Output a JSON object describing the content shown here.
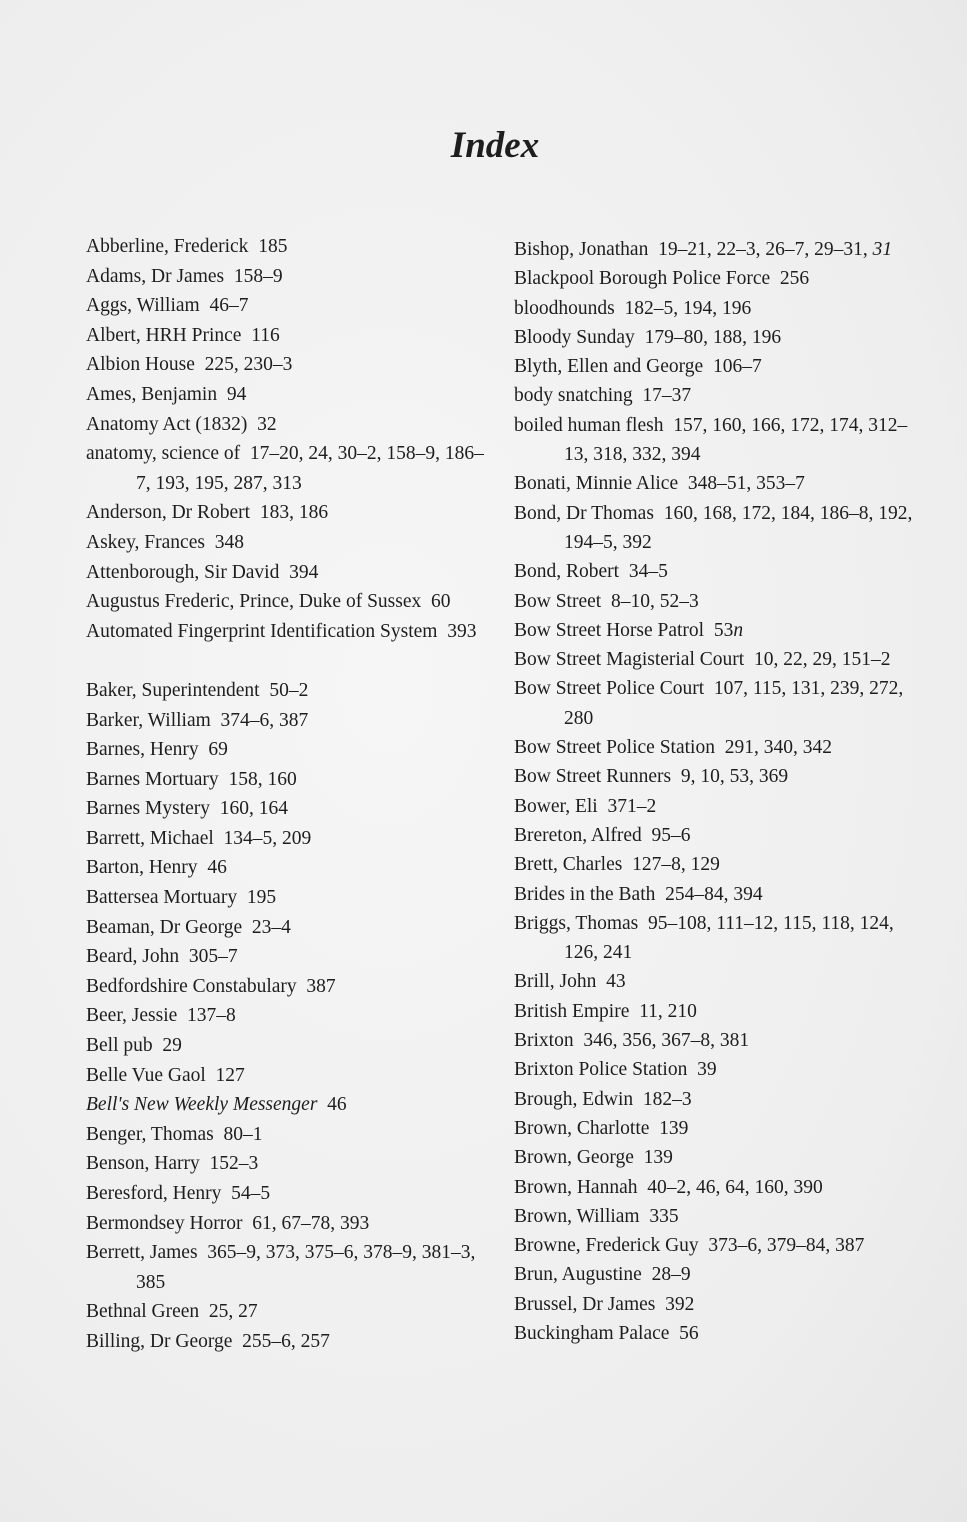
{
  "title": "Index",
  "columns": [
    [
      {
        "head": "Abberline, Frederick",
        "pages": "185"
      },
      {
        "head": "Adams, Dr James",
        "pages": "158–9"
      },
      {
        "head": "Aggs, William",
        "pages": "46–7"
      },
      {
        "head": "Albert, HRH Prince",
        "pages": "116"
      },
      {
        "head": "Albion House",
        "pages": "225, 230–3"
      },
      {
        "head": "Ames, Benjamin",
        "pages": "94"
      },
      {
        "head": "Anatomy Act (1832)",
        "pages": "32"
      },
      {
        "head": "anatomy, science of",
        "pages": "17–20, 24, 30–2, 158–9, 186–7, 193, 195, 287, 313"
      },
      {
        "head": "Anderson, Dr Robert",
        "pages": "183, 186"
      },
      {
        "head": "Askey, Frances",
        "pages": "348"
      },
      {
        "head": "Attenborough, Sir David",
        "pages": "394"
      },
      {
        "head": "Augustus Frederic, Prince, Duke of Sussex",
        "pages": "60"
      },
      {
        "head": "Automated Fingerprint Identification System",
        "pages": "393"
      },
      {
        "gap": true
      },
      {
        "head": "Baker, Superintendent",
        "pages": "50–2"
      },
      {
        "head": "Barker, William",
        "pages": "374–6, 387"
      },
      {
        "head": "Barnes, Henry",
        "pages": "69"
      },
      {
        "head": "Barnes Mortuary",
        "pages": "158, 160"
      },
      {
        "head": "Barnes Mystery",
        "pages": "160, 164"
      },
      {
        "head": "Barrett, Michael",
        "pages": "134–5, 209"
      },
      {
        "head": "Barton, Henry",
        "pages": "46"
      },
      {
        "head": "Battersea Mortuary",
        "pages": "195"
      },
      {
        "head": "Beaman, Dr George",
        "pages": "23–4"
      },
      {
        "head": "Beard, John",
        "pages": "305–7"
      },
      {
        "head": "Bedfordshire Constabulary",
        "pages": "387"
      },
      {
        "head": "Beer, Jessie",
        "pages": "137–8"
      },
      {
        "head": "Bell pub",
        "pages": "29"
      },
      {
        "head": "Belle Vue Gaol",
        "pages": "127"
      },
      {
        "head": "Bell's New Weekly Messenger",
        "head_italic": true,
        "pages": "46"
      },
      {
        "head": "Benger, Thomas",
        "pages": "80–1"
      },
      {
        "head": "Benson, Harry",
        "pages": "152–3"
      },
      {
        "head": "Beresford, Henry",
        "pages": "54–5"
      },
      {
        "head": "Bermondsey Horror",
        "pages": "61, 67–78, 393"
      },
      {
        "head": "Berrett, James",
        "pages": "365–9, 373, 375–6, 378–9, 381–3, 385"
      },
      {
        "head": "Bethnal Green",
        "pages": "25, 27"
      },
      {
        "head": "Billing, Dr George",
        "pages": "255–6, 257"
      }
    ],
    [
      {
        "head": "Bishop, Jonathan",
        "pages": "19–21, 22–3, 26–7, 29–31, ",
        "pages_italic": "31"
      },
      {
        "head": "Blackpool Borough Police Force",
        "pages": "256"
      },
      {
        "head": "bloodhounds",
        "pages": "182–5, 194, 196"
      },
      {
        "head": "Bloody Sunday",
        "pages": "179–80, 188, 196"
      },
      {
        "head": "Blyth, Ellen and George",
        "pages": "106–7"
      },
      {
        "head": "body snatching",
        "pages": "17–37"
      },
      {
        "head": "boiled human flesh",
        "pages": "157, 160, 166, 172, 174, 312–13, 318, 332, 394"
      },
      {
        "head": "Bonati, Minnie Alice",
        "pages": "348–51, 353–7"
      },
      {
        "head": "Bond, Dr Thomas",
        "pages": "160, 168, 172, 184, 186–8, 192, 194–5, 392"
      },
      {
        "head": "Bond, Robert",
        "pages": "34–5"
      },
      {
        "head": "Bow Street",
        "pages": "8–10, 52–3"
      },
      {
        "head": "Bow Street Horse Patrol",
        "pages": "53",
        "pages_italic": "n"
      },
      {
        "head": "Bow Street Magisterial Court",
        "pages": "10, 22, 29, 151–2"
      },
      {
        "head": "Bow Street Police Court",
        "pages": "107, 115, 131, 239, 272, 280"
      },
      {
        "head": "Bow Street Police Station",
        "pages": "291, 340, 342"
      },
      {
        "head": "Bow Street Runners",
        "pages": "9, 10, 53, 369"
      },
      {
        "head": "Bower, Eli",
        "pages": "371–2"
      },
      {
        "head": "Brereton, Alfred",
        "pages": "95–6"
      },
      {
        "head": "Brett, Charles",
        "pages": "127–8, 129"
      },
      {
        "head": "Brides in the Bath",
        "pages": "254–84, 394"
      },
      {
        "head": "Briggs, Thomas",
        "pages": "95–108, 111–12, 115, 118, 124, 126, 241"
      },
      {
        "head": "Brill, John",
        "pages": "43"
      },
      {
        "head": "British Empire",
        "pages": "11, 210"
      },
      {
        "head": "Brixton",
        "pages": "346, 356, 367–8, 381"
      },
      {
        "head": "Brixton Police Station",
        "pages": "39"
      },
      {
        "head": "Brough, Edwin",
        "pages": "182–3"
      },
      {
        "head": "Brown, Charlotte",
        "pages": "139"
      },
      {
        "head": "Brown, George",
        "pages": "139"
      },
      {
        "head": "Brown, Hannah",
        "pages": "40–2, 46, 64, 160, 390"
      },
      {
        "head": "Brown, William",
        "pages": "335"
      },
      {
        "head": "Browne, Frederick Guy",
        "pages": "373–6, 379–84, 387"
      },
      {
        "head": "Brun, Augustine",
        "pages": "28–9"
      },
      {
        "head": "Brussel, Dr James",
        "pages": "392"
      },
      {
        "head": "Buckingham Palace",
        "pages": "56"
      }
    ]
  ]
}
